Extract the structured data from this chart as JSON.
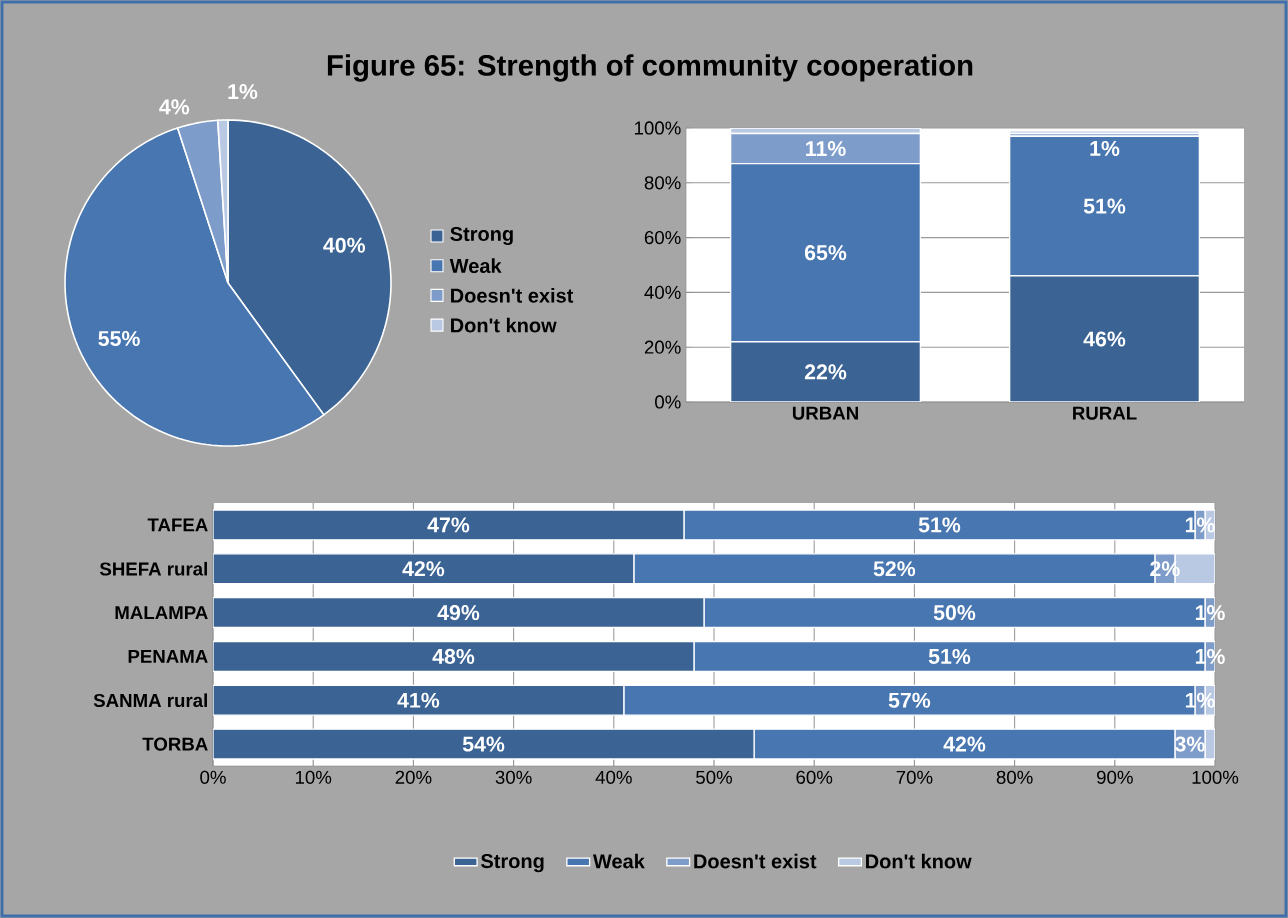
{
  "chart_data": [
    {
      "type": "pie",
      "title": "Figure 65: Strength of community cooperation",
      "categories": [
        "Strong",
        "Weak",
        "Doesn't exist",
        "Don't know"
      ],
      "values": [
        40,
        55,
        4,
        1
      ],
      "value_labels": [
        "40%",
        "55%",
        "4%",
        "1%"
      ],
      "colors": [
        "#3b6495",
        "#4876b0",
        "#7e9cc9",
        "#b9c9e3"
      ],
      "legend": "right"
    },
    {
      "type": "bar",
      "stacked": true,
      "categories": [
        "URBAN",
        "RURAL"
      ],
      "ylim": [
        0,
        100
      ],
      "yticks": [
        {
          "value": 0,
          "label": "0%"
        },
        {
          "value": 20,
          "label": "20%"
        },
        {
          "value": 40,
          "label": "40%"
        },
        {
          "value": 60,
          "label": "60%"
        },
        {
          "value": 80,
          "label": "80%"
        },
        {
          "value": 100,
          "label": "100%"
        }
      ],
      "grid": "y",
      "series": [
        {
          "color": "#3b6495",
          "values": [
            22,
            46
          ],
          "value_labels": [
            "22%",
            "46%"
          ]
        },
        {
          "color": "#4876b0",
          "values": [
            65,
            51
          ],
          "value_labels": [
            "65%",
            "51%"
          ]
        },
        {
          "color": "#7e9cc9",
          "values": [
            11,
            1
          ],
          "value_labels": [
            "11%",
            "1%"
          ]
        },
        {
          "color": "#b9c9e3",
          "values": [
            2,
            1
          ]
        }
      ]
    },
    {
      "type": "bar",
      "stacked": true,
      "orientation": "horizontal",
      "categories": [
        "TAFEA",
        "SHEFA rural",
        "MALAMPA",
        "PENAMA",
        "SANMA rural",
        "TORBA"
      ],
      "xlim": [
        0,
        100
      ],
      "xticks": [
        {
          "value": 0,
          "label": "0%"
        },
        {
          "value": 10,
          "label": "10%"
        },
        {
          "value": 20,
          "label": "20%"
        },
        {
          "value": 30,
          "label": "30%"
        },
        {
          "value": 40,
          "label": "40%"
        },
        {
          "value": 50,
          "label": "50%"
        },
        {
          "value": 60,
          "label": "60%"
        },
        {
          "value": 70,
          "label": "70%"
        },
        {
          "value": 80,
          "label": "80%"
        },
        {
          "value": 90,
          "label": "90%"
        },
        {
          "value": 100,
          "label": "100%"
        }
      ],
      "grid": "x",
      "legend": "bottom",
      "series": [
        {
          "name": "Strong",
          "color": "#3b6495",
          "values": [
            47,
            42,
            49,
            48,
            41,
            54
          ],
          "value_labels": [
            "47%",
            "42%",
            "49%",
            "48%",
            "41%",
            "54%"
          ]
        },
        {
          "name": "Weak",
          "color": "#4876b0",
          "values": [
            51,
            52,
            50,
            51,
            57,
            42
          ],
          "value_labels": [
            "51%",
            "52%",
            "50%",
            "51%",
            "57%",
            "42%"
          ]
        },
        {
          "name": "Doesn't exist",
          "color": "#7e9cc9",
          "values": [
            1,
            2,
            1,
            1,
            1,
            3
          ],
          "value_labels": [
            "1%",
            "2%",
            "1%",
            "1%",
            "1%",
            "3%"
          ]
        },
        {
          "name": "Don't know",
          "color": "#b9c9e3",
          "values": [
            1,
            4,
            null,
            null,
            1,
            1
          ]
        }
      ]
    }
  ]
}
